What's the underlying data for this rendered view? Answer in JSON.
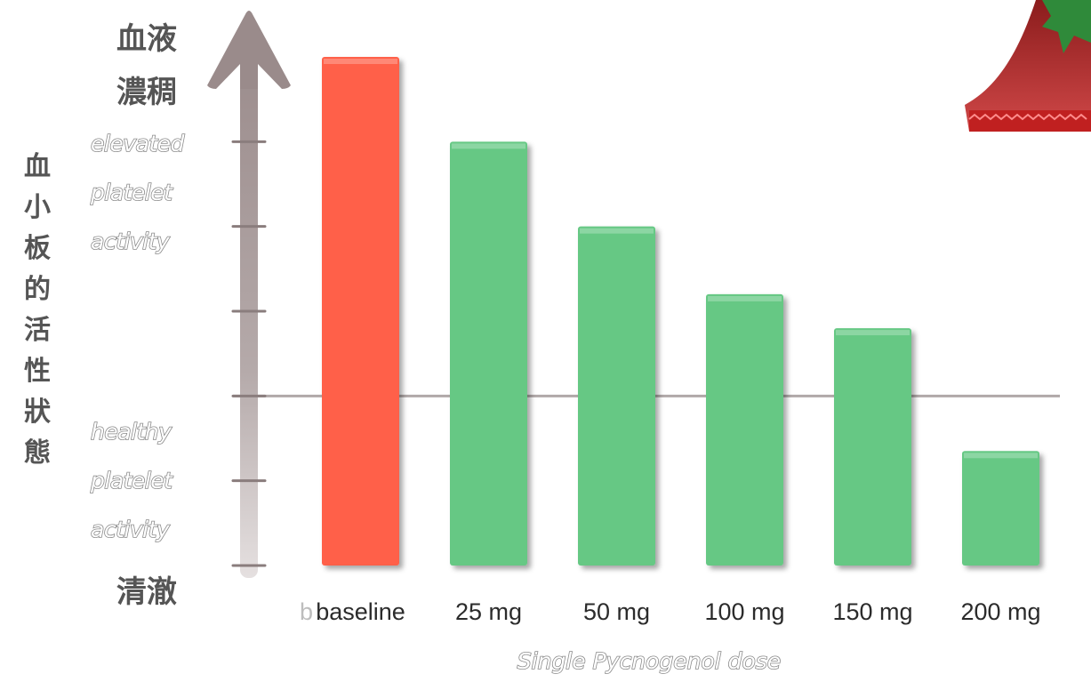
{
  "chart_data": {
    "type": "bar",
    "title": "",
    "xlabel": "Single Pycnogenol dose",
    "ylabel": "血小板的活性狀態",
    "axis_top_label": "血液濃稠",
    "axis_bottom_label": "清澈",
    "upper_band_label": [
      "elevated",
      "platelet",
      "activity"
    ],
    "lower_band_label": [
      "healthy",
      "platelet",
      "activity"
    ],
    "hidden_first_tick": "b",
    "categories": [
      "baseline",
      "25 mg",
      "50 mg",
      "100 mg",
      "150 mg",
      "200 mg"
    ],
    "values": [
      6,
      5,
      4,
      3.2,
      2.8,
      1.35
    ],
    "ylim": [
      0,
      6
    ],
    "reference_line": 2,
    "grid": false,
    "legend": "none",
    "bar_colors": [
      "#ff604a",
      "#66c884",
      "#66c884",
      "#66c884",
      "#66c884",
      "#66c884"
    ]
  },
  "colors": {
    "baseline_bar": "#ff604a",
    "dose_bar": "#66c884",
    "axis_arrow": "#a89b9b",
    "reference_line": "#b0a8a8",
    "ylabel_text": "#555555"
  },
  "decoration": {
    "icon": "holiday-tree-icon"
  }
}
